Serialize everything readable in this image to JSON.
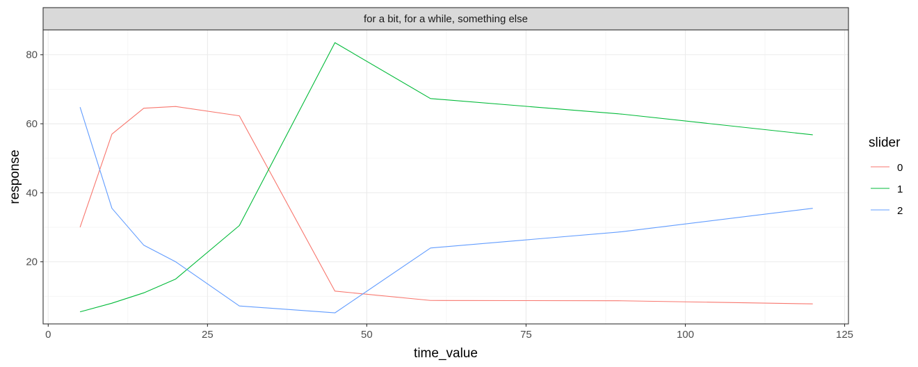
{
  "chart_data": {
    "type": "line",
    "facet_label": "for a bit, for a while, something else",
    "xlabel": "time_value",
    "ylabel": "response",
    "xlim": [
      -0.8,
      125.6
    ],
    "ylim": [
      2.0,
      87.2
    ],
    "x_ticks": [
      0,
      25,
      50,
      75,
      100,
      125
    ],
    "y_ticks": [
      20,
      40,
      60,
      80
    ],
    "grid": true,
    "legend": {
      "title": "slider",
      "position": "right"
    },
    "series": [
      {
        "name": "0",
        "color": "#F8766D",
        "points": [
          [
            5,
            30.0
          ],
          [
            10,
            57.0
          ],
          [
            15,
            64.5
          ],
          [
            20,
            65.0
          ],
          [
            30,
            62.3
          ],
          [
            45,
            11.5
          ],
          [
            60,
            8.8
          ],
          [
            90,
            8.7
          ],
          [
            120,
            7.8
          ]
        ]
      },
      {
        "name": "1",
        "color": "#00BA38",
        "points": [
          [
            5,
            5.5
          ],
          [
            10,
            8.0
          ],
          [
            15,
            11.0
          ],
          [
            20,
            15.0
          ],
          [
            30,
            30.5
          ],
          [
            45,
            83.5
          ],
          [
            60,
            67.3
          ],
          [
            90,
            62.8
          ],
          [
            120,
            56.8
          ]
        ]
      },
      {
        "name": "2",
        "color": "#619CFF",
        "points": [
          [
            5,
            64.8
          ],
          [
            10,
            35.5
          ],
          [
            15,
            24.8
          ],
          [
            20,
            20.0
          ],
          [
            30,
            7.2
          ],
          [
            45,
            5.2
          ],
          [
            60,
            24.0
          ],
          [
            90,
            28.7
          ],
          [
            120,
            35.5
          ]
        ]
      }
    ]
  }
}
